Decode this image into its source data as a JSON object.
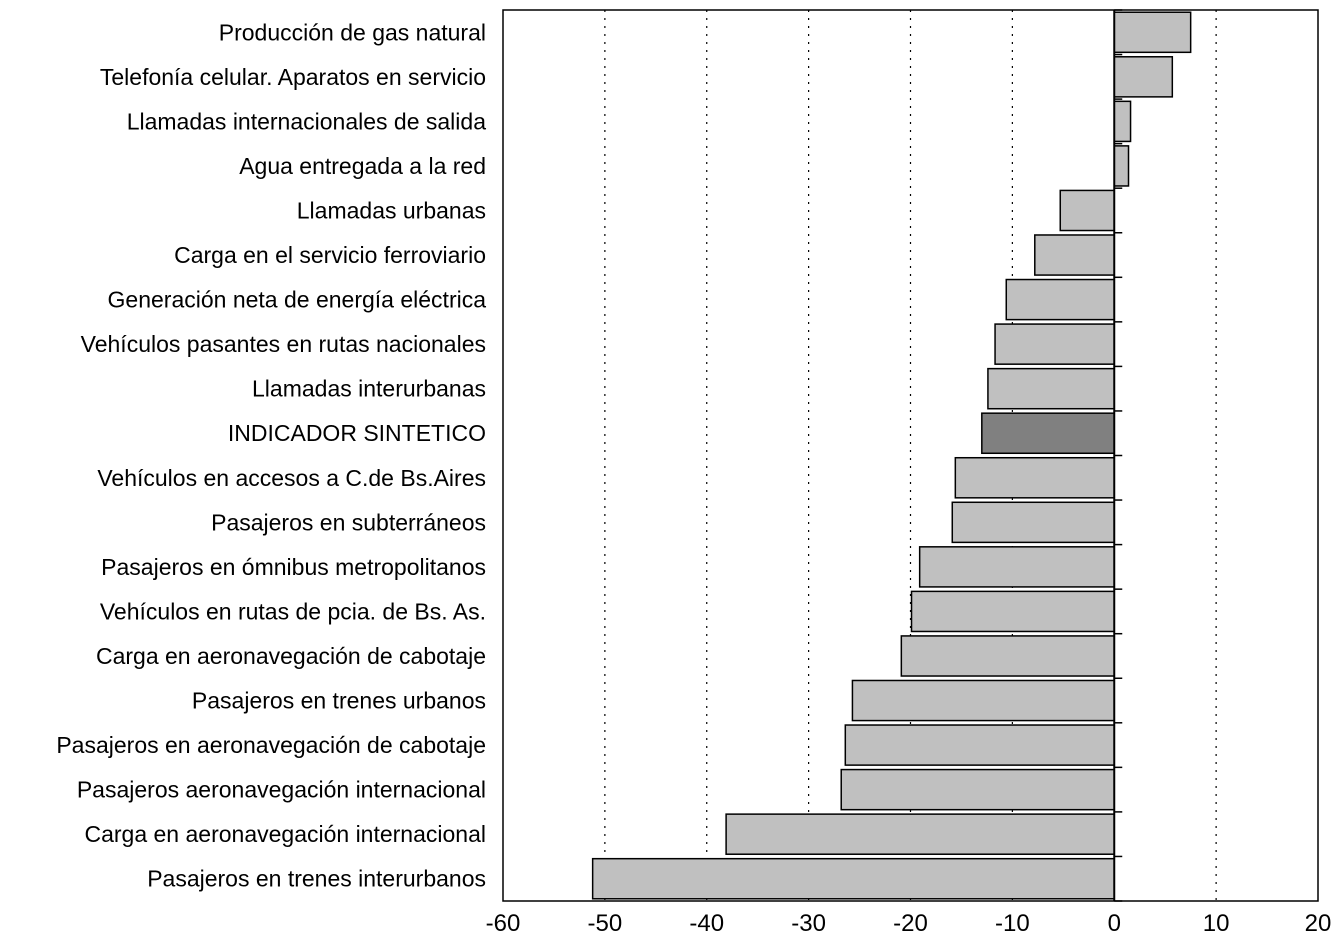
{
  "chart_data": {
    "type": "bar",
    "orientation": "horizontal",
    "categories": [
      "Producción de gas natural",
      "Telefonía celular. Aparatos en servicio",
      "Llamadas internacionales de salida",
      "Agua entregada a la red",
      "Llamadas urbanas",
      "Carga en el servicio ferroviario",
      "Generación neta de energía eléctrica",
      "Vehículos pasantes en rutas nacionales",
      "Llamadas interurbanas",
      "INDICADOR SINTETICO",
      "Vehículos en accesos a C.de Bs.Aires",
      "Pasajeros en subterráneos",
      "Pasajeros en ómnibus metropolitanos",
      "Vehículos en rutas de pcia. de Bs. As.",
      "Carga en aeronavegación de cabotaje",
      "Pasajeros en trenes urbanos",
      "Pasajeros en aeronavegación de cabotaje",
      "Pasajeros aeronavegación internacional",
      "Carga en aeronavegación internacional",
      "Pasajeros en trenes interurbanos"
    ],
    "values": [
      7.5,
      5.7,
      1.6,
      1.4,
      -5.3,
      -7.8,
      -10.6,
      -11.7,
      -12.4,
      -13.0,
      -15.6,
      -15.9,
      -19.1,
      -19.9,
      -20.9,
      -25.7,
      -26.4,
      -26.8,
      -38.1,
      -51.2
    ],
    "highlight": "INDICADOR SINTETICO",
    "xlim": [
      -60,
      20
    ],
    "xticks": [
      -60,
      -50,
      -40,
      -30,
      -20,
      -10,
      0,
      10,
      20
    ],
    "grid": "vertical dotted",
    "colors": {
      "bar": "#c0c0c0",
      "highlight": "#808080",
      "border": "#000000"
    },
    "title": "",
    "xlabel": "",
    "ylabel": ""
  }
}
